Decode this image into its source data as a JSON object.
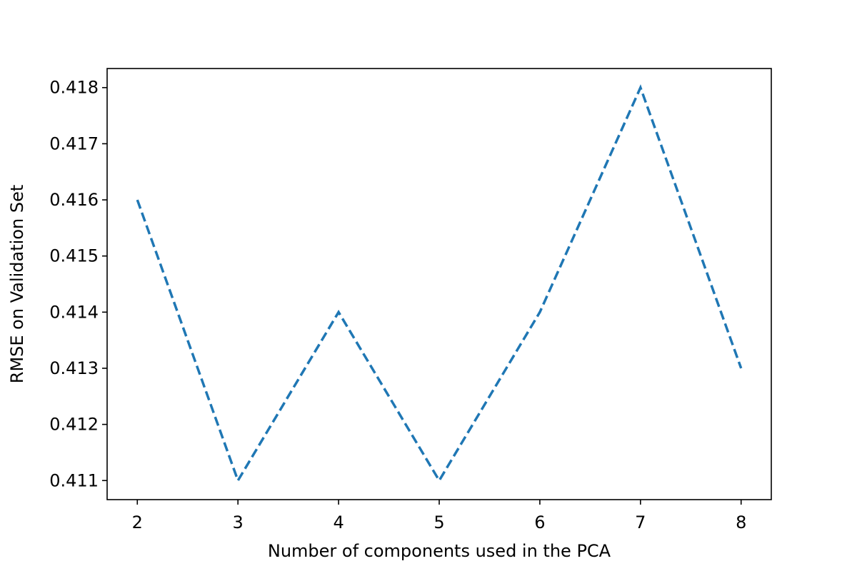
{
  "chart_data": {
    "type": "line",
    "title": "",
    "xlabel": "Number of components used in the PCA",
    "ylabel": "RMSE on Validation Set",
    "x": [
      2,
      3,
      4,
      5,
      6,
      7,
      8
    ],
    "xlim": [
      1.7,
      8.3
    ],
    "ylim": [
      0.41066,
      0.41834
    ],
    "xticks": [
      2,
      3,
      4,
      5,
      6,
      7,
      8
    ],
    "xtick_labels": [
      "2",
      "3",
      "4",
      "5",
      "6",
      "7",
      "8"
    ],
    "yticks": [
      0.411,
      0.412,
      0.413,
      0.414,
      0.415,
      0.416,
      0.417,
      0.418
    ],
    "ytick_labels": [
      "0.411",
      "0.412",
      "0.413",
      "0.414",
      "0.415",
      "0.416",
      "0.417",
      "0.418"
    ],
    "grid": false,
    "legend": "none",
    "series": [
      {
        "name": "RMSE",
        "line_style": "dashed",
        "color": "#1f77b4",
        "values": [
          0.416,
          0.411,
          0.414,
          0.411,
          0.414,
          0.418,
          0.413
        ]
      }
    ]
  }
}
